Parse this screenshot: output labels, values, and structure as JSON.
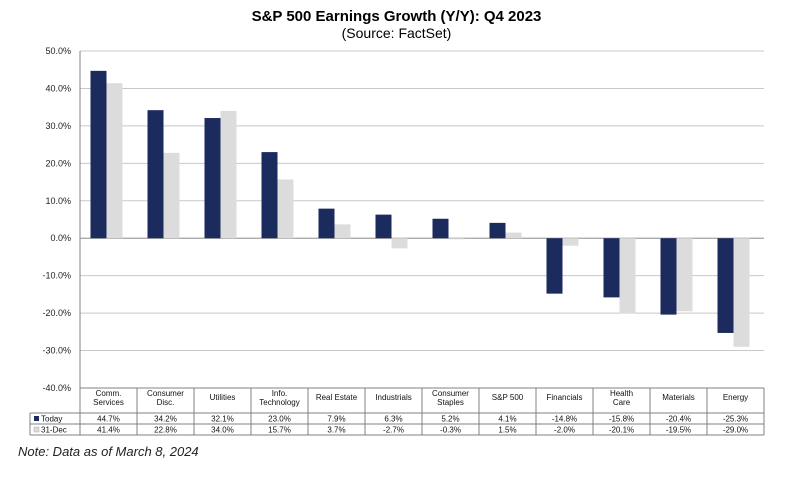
{
  "title": "S&P 500 Earnings Growth (Y/Y): Q4 2023",
  "subtitle": "(Source: FactSet)",
  "footnote": "Note: Data as of March 8, 2024",
  "colors": {
    "today": "#1b2b5e",
    "dec31": "#dcdcdc",
    "grid": "#c8c8c8",
    "frame": "#808080"
  },
  "chart_data": {
    "type": "bar",
    "categories": [
      [
        "Comm.",
        "Services"
      ],
      [
        "Consumer",
        "Disc."
      ],
      [
        "Utilities"
      ],
      [
        "Info.",
        "Technology"
      ],
      [
        "Real Estate"
      ],
      [
        "Industrials"
      ],
      [
        "Consumer",
        "Staples"
      ],
      [
        "S&P 500"
      ],
      [
        "Financials"
      ],
      [
        "Health",
        "Care"
      ],
      [
        "Materials"
      ],
      [
        "Energy"
      ]
    ],
    "series": [
      {
        "name": "Today",
        "values": [
          44.7,
          34.2,
          32.1,
          23.0,
          7.9,
          6.3,
          5.2,
          4.1,
          -14.8,
          -15.8,
          -20.4,
          -25.3
        ],
        "labels": [
          "44.7%",
          "34.2%",
          "32.1%",
          "23.0%",
          "7.9%",
          "6.3%",
          "5.2%",
          "4.1%",
          "-14.8%",
          "-15.8%",
          "-20.4%",
          "-25.3%"
        ]
      },
      {
        "name": "31-Dec",
        "values": [
          41.4,
          22.8,
          34.0,
          15.7,
          3.7,
          -2.7,
          -0.3,
          1.5,
          -2.0,
          -20.1,
          -19.5,
          -29.0
        ],
        "labels": [
          "41.4%",
          "22.8%",
          "34.0%",
          "15.7%",
          "3.7%",
          "-2.7%",
          "-0.3%",
          "1.5%",
          "-2.0%",
          "-20.1%",
          "-19.5%",
          "-29.0%"
        ]
      }
    ],
    "ylim": [
      -40,
      50
    ],
    "yticks": [
      50,
      40,
      30,
      20,
      10,
      0,
      -10,
      -20,
      -30,
      -40
    ],
    "ytick_labels": [
      "50.0%",
      "40.0%",
      "30.0%",
      "20.0%",
      "10.0%",
      "0.0%",
      "-10.0%",
      "-20.0%",
      "-30.0%",
      "-40.0%"
    ],
    "grid": true,
    "legend": "data-table"
  }
}
